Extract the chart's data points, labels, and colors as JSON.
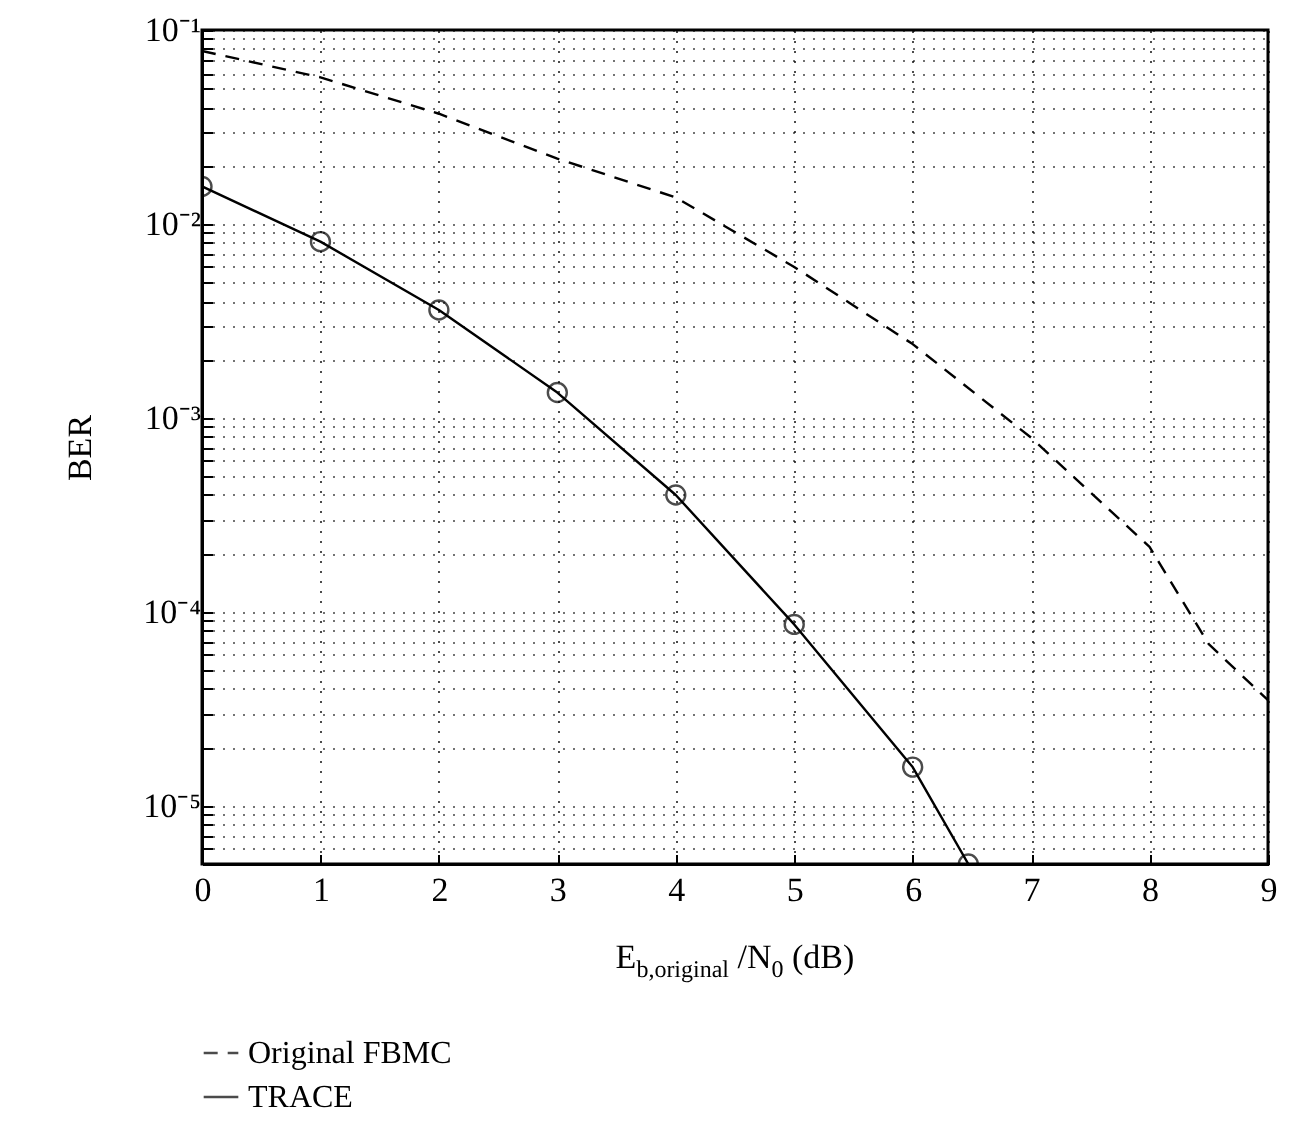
{
  "chart_data": {
    "type": "line",
    "xlabel": "E$_{b,original}$ /N$_{0}$ (dB)",
    "ylabel": "BER",
    "log": "y",
    "grid": true,
    "legend": "bottom",
    "xlim": [
      0,
      9
    ],
    "xticks": [
      0,
      1,
      2,
      3,
      4,
      5,
      6,
      7,
      8,
      9
    ],
    "ylim": [
      5e-06,
      0.1
    ],
    "yticks": [
      {
        "value": 5e-06,
        "label": null
      },
      {
        "value": 6e-06,
        "label": null
      },
      {
        "value": 7e-06,
        "label": null
      },
      {
        "value": 8e-06,
        "label": null
      },
      {
        "value": 9e-06,
        "label": null
      },
      {
        "value": 1e-05,
        "label": "10⁻⁵"
      },
      {
        "value": 2e-05,
        "label": null
      },
      {
        "value": 3e-05,
        "label": null
      },
      {
        "value": 4e-05,
        "label": null
      },
      {
        "value": 5e-05,
        "label": null
      },
      {
        "value": 6e-05,
        "label": null
      },
      {
        "value": 7e-05,
        "label": null
      },
      {
        "value": 8e-05,
        "label": null
      },
      {
        "value": 9e-05,
        "label": null
      },
      {
        "value": 0.0001,
        "label": "10⁻⁴"
      },
      {
        "value": 0.0002,
        "label": null
      },
      {
        "value": 0.0003,
        "label": null
      },
      {
        "value": 0.0004,
        "label": null
      },
      {
        "value": 0.0005,
        "label": null
      },
      {
        "value": 0.0006,
        "label": null
      },
      {
        "value": 0.0007,
        "label": null
      },
      {
        "value": 0.0008,
        "label": null
      },
      {
        "value": 0.0009,
        "label": null
      },
      {
        "value": 0.001,
        "label": "10⁻³"
      },
      {
        "value": 0.002,
        "label": null
      },
      {
        "value": 0.003,
        "label": null
      },
      {
        "value": 0.004,
        "label": null
      },
      {
        "value": 0.005,
        "label": null
      },
      {
        "value": 0.006,
        "label": null
      },
      {
        "value": 0.007,
        "label": null
      },
      {
        "value": 0.008,
        "label": null
      },
      {
        "value": 0.009,
        "label": null
      },
      {
        "value": 0.01,
        "label": "10⁻²"
      },
      {
        "value": 0.02,
        "label": null
      },
      {
        "value": 0.03,
        "label": null
      },
      {
        "value": 0.04,
        "label": null
      },
      {
        "value": 0.05,
        "label": null
      },
      {
        "value": 0.06,
        "label": null
      },
      {
        "value": 0.07,
        "label": null
      },
      {
        "value": 0.08,
        "label": null
      },
      {
        "value": 0.09,
        "label": null
      },
      {
        "value": 0.1,
        "label": "10⁻¹"
      }
    ],
    "series": [
      {
        "name": "Original FBMC",
        "color": "#000000",
        "line_style": "dashed",
        "marker": "none",
        "x": [
          0,
          1,
          2,
          3,
          4,
          5,
          6,
          7,
          8,
          8.5,
          9
        ],
        "values": [
          0.078,
          0.057,
          0.037,
          0.0217,
          0.0137,
          0.006,
          0.0024,
          0.00079,
          0.000216,
          6.8e-05,
          3.5e-05
        ]
      },
      {
        "name": "TRACE",
        "color": "#000000",
        "line_style": "solid",
        "marker": "circle",
        "x": [
          0,
          1,
          2,
          3,
          4,
          5,
          6,
          6.47
        ],
        "values": [
          0.0156,
          0.0081,
          0.0036,
          0.00135,
          0.0004,
          8.6e-05,
          1.58e-05,
          5e-06
        ]
      }
    ]
  }
}
